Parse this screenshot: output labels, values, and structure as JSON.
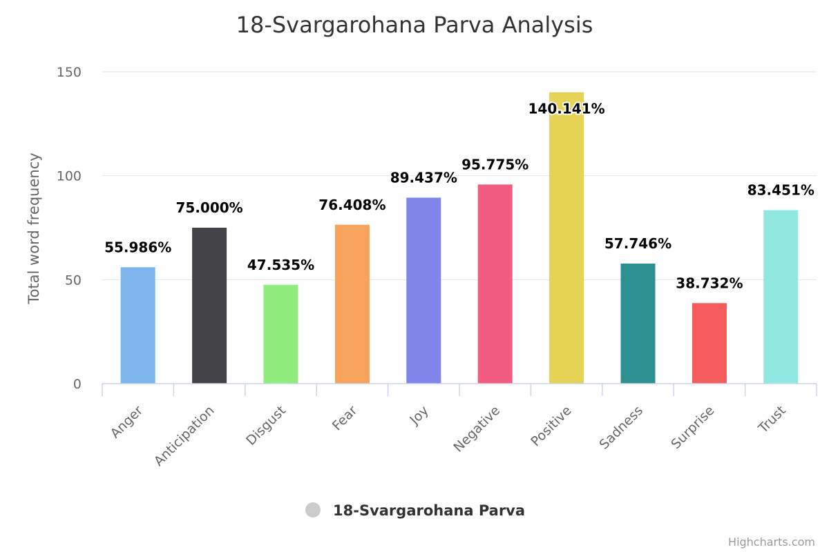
{
  "chart_data": {
    "type": "bar",
    "title": "18-Svargarohana Parva Analysis",
    "ylabel": "Total word frequency",
    "xlabel": "",
    "ylim": [
      0,
      150
    ],
    "yticks": [
      "0",
      "50",
      "100",
      "150"
    ],
    "grid": true,
    "categories": [
      "Anger",
      "Anticipation",
      "Disgust",
      "Fear",
      "Joy",
      "Negative",
      "Positive",
      "Sadness",
      "Surprise",
      "Trust"
    ],
    "series": [
      {
        "name": "18-Svargarohana Parva",
        "values": [
          55.986,
          75.0,
          47.535,
          76.408,
          89.437,
          95.775,
          140.141,
          57.746,
          38.732,
          83.451
        ],
        "data_labels": [
          "55.986%",
          "75.000%",
          "47.535%",
          "76.408%",
          "89.437%",
          "95.775%",
          "140.141%",
          "57.746%",
          "38.732%",
          "83.451%"
        ],
        "colors": [
          "#7cb5ec",
          "#434348",
          "#90ed7d",
          "#f7a35c",
          "#8085e9",
          "#f15c80",
          "#e4d354",
          "#2b908f",
          "#f45b5b",
          "#91e8e1"
        ]
      }
    ],
    "legend": {
      "placement": "bottom-center",
      "marker_color": "#cccccc"
    },
    "credits": "Highcharts.com"
  }
}
